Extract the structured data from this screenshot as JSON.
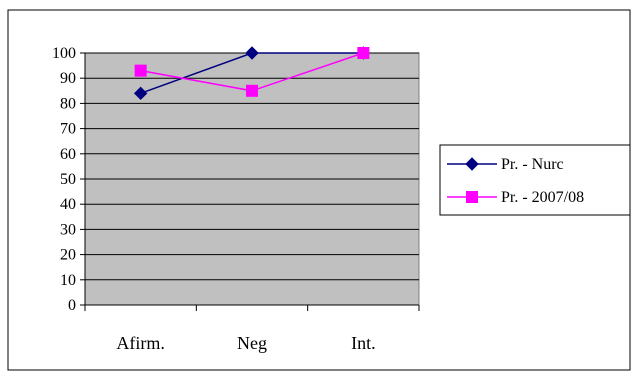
{
  "chart_data": {
    "type": "line",
    "title": "",
    "xlabel": "",
    "ylabel": "",
    "categories": [
      "Afirm.",
      "Neg",
      "Int."
    ],
    "ylim": [
      0,
      100
    ],
    "yticks": [
      0,
      10,
      20,
      30,
      40,
      50,
      60,
      70,
      80,
      90,
      100
    ],
    "grid": true,
    "plot_background": "#C0C0C0",
    "legend_position": "right",
    "series": [
      {
        "name": "Pr. - Nurc",
        "values": [
          84,
          100,
          100
        ],
        "color": "#000080",
        "marker": "diamond"
      },
      {
        "name": "Pr. - 2007/08",
        "values": [
          93,
          85,
          100
        ],
        "color": "#FF00FF",
        "marker": "square"
      }
    ]
  }
}
